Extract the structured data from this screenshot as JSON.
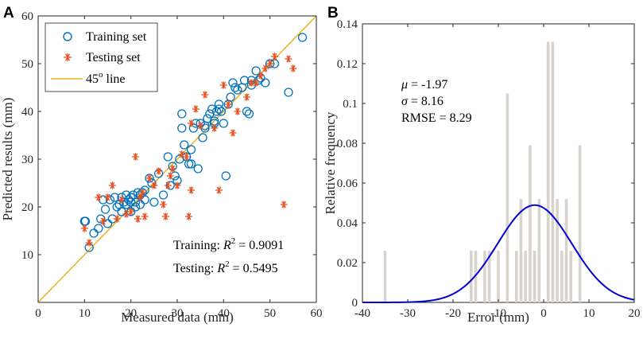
{
  "chart_data": [
    {
      "panel": "A",
      "type": "scatter",
      "xlabel": "Measured data (mm)",
      "ylabel": "Predicted results (mm)",
      "xlim": [
        0,
        60
      ],
      "ylim": [
        0,
        60
      ],
      "xticks": [
        0,
        10,
        20,
        30,
        40,
        50,
        60
      ],
      "yticks": [
        10,
        20,
        30,
        40,
        50,
        60
      ],
      "legend": {
        "placement": "top-left",
        "entries": [
          {
            "label": "Training set",
            "marker": "circle",
            "color": "#0072BD"
          },
          {
            "label": "Testing set",
            "marker": "asterisk",
            "color": "#E8501F"
          },
          {
            "label": "45",
            "superscript": "o",
            "suffix": " line",
            "marker": "line",
            "color": "#EDB120"
          }
        ]
      },
      "reference_line": {
        "name": "45o line",
        "from": [
          0,
          0
        ],
        "to": [
          60,
          60
        ],
        "color": "#EDB120"
      },
      "annotations": [
        {
          "prefix": "Training: ",
          "var": "R",
          "sup": "2",
          "value": " = 0.9091"
        },
        {
          "prefix": "Testing: ",
          "var": "R",
          "sup": "2",
          "value": " = 0.5495"
        }
      ],
      "series": [
        {
          "name": "Training set",
          "x": [
            10,
            10.2,
            11,
            12,
            13,
            13.5,
            14,
            14.5,
            15,
            15.5,
            16,
            16.5,
            17,
            17.5,
            18,
            18,
            18.5,
            19,
            19,
            19.5,
            20,
            20,
            20,
            20.5,
            21,
            21,
            21.5,
            22,
            22,
            22.5,
            23,
            23,
            24,
            24.5,
            25,
            26,
            27,
            28,
            28.5,
            29,
            29.5,
            30,
            30.5,
            31,
            31,
            31.5,
            32,
            32.5,
            33,
            33,
            33.5,
            34,
            34.5,
            35,
            35.5,
            36,
            36,
            36.5,
            37,
            37.5,
            38,
            38,
            38.5,
            39,
            39,
            39.5,
            40,
            40.5,
            41,
            41.5,
            42,
            42.5,
            43,
            44,
            44.5,
            45,
            45.5,
            46,
            46,
            47,
            47.5,
            48,
            49,
            50,
            51,
            54,
            57
          ],
          "y": [
            17,
            17,
            11.5,
            14.5,
            15.5,
            17.5,
            21.5,
            19.5,
            16.5,
            21.5,
            17.5,
            22,
            20,
            20.5,
            22,
            19,
            21,
            22.5,
            20.5,
            21.5,
            21,
            22,
            19,
            22.5,
            21,
            20,
            23,
            22.5,
            20.5,
            23,
            23.5,
            21.5,
            26,
            25,
            21,
            27,
            22.5,
            30.5,
            24.5,
            28.5,
            26.5,
            25.5,
            30,
            39.5,
            36.5,
            33,
            30.5,
            29,
            32,
            29,
            36.5,
            37.5,
            28,
            37.5,
            34.5,
            37,
            36.5,
            38.5,
            39.5,
            40.5,
            37.5,
            38,
            40,
            40.5,
            41.5,
            40,
            37.5,
            26.5,
            41.5,
            43,
            46,
            45,
            44.5,
            45,
            46.5,
            40,
            39.5,
            46.5,
            45.5,
            48.5,
            46.5,
            47,
            46,
            50,
            50,
            44,
            55.5
          ]
        },
        {
          "name": "Testing set",
          "x": [
            10,
            11,
            13,
            14,
            15,
            16,
            17,
            18,
            19,
            20,
            21,
            21.5,
            22,
            22.5,
            23,
            24,
            25,
            26,
            27,
            27.5,
            28,
            28.5,
            29,
            30,
            31,
            32,
            32.5,
            33,
            33,
            34,
            35,
            36,
            38,
            39,
            40,
            41,
            42,
            43,
            45,
            46,
            47,
            48,
            49,
            50,
            51,
            53,
            54,
            55
          ],
          "y": [
            15.5,
            12.5,
            22,
            17,
            22,
            24.5,
            17.5,
            21.5,
            18.5,
            19,
            30.5,
            17.5,
            22,
            23,
            18,
            26,
            24.5,
            27.5,
            20.5,
            18,
            24.5,
            26.5,
            28,
            24.5,
            31,
            30.5,
            18,
            37.5,
            23.5,
            40.5,
            37,
            43.5,
            36.5,
            23.5,
            45.5,
            41.5,
            35.5,
            40,
            43,
            46,
            46,
            47.5,
            49,
            50,
            51.5,
            20.5,
            51,
            49
          ]
        }
      ]
    },
    {
      "panel": "B",
      "type": "bar",
      "xlabel": "Error (mm)",
      "ylabel": "Relative frequency",
      "xlim": [
        -40,
        20
      ],
      "ylim": [
        0,
        0.14
      ],
      "xticks": [
        -40,
        -30,
        -20,
        -10,
        0,
        10,
        20
      ],
      "yticks": [
        0,
        0.02,
        0.04,
        0.06,
        0.08,
        0.1,
        0.12,
        0.14
      ],
      "bar_color": "#D8D3CD",
      "curve": {
        "type": "normal_pdf",
        "mu": -1.97,
        "sigma": 8.16,
        "color": "#0000D6"
      },
      "annotations": [
        {
          "var": "μ",
          "value": " = -1.97"
        },
        {
          "var": "σ",
          "value": " = 8.16"
        },
        {
          "var": "RMSE",
          "value": " = 8.29"
        }
      ],
      "bins": [
        {
          "x": -35,
          "value": 0.026
        },
        {
          "x": -16,
          "value": 0.026
        },
        {
          "x": -15,
          "value": 0.026
        },
        {
          "x": -13,
          "value": 0.026
        },
        {
          "x": -12,
          "value": 0.026
        },
        {
          "x": -10,
          "value": 0.026
        },
        {
          "x": -8,
          "value": 0.105
        },
        {
          "x": -6,
          "value": 0.026
        },
        {
          "x": -5,
          "value": 0.052
        },
        {
          "x": -4,
          "value": 0.026
        },
        {
          "x": -3,
          "value": 0.079
        },
        {
          "x": -2,
          "value": 0.026
        },
        {
          "x": -1,
          "value": 0.052
        },
        {
          "x": 1,
          "value": 0.131
        },
        {
          "x": 2,
          "value": 0.131
        },
        {
          "x": 3,
          "value": 0.052
        },
        {
          "x": 4,
          "value": 0.026
        },
        {
          "x": 5,
          "value": 0.052
        },
        {
          "x": 6,
          "value": 0.026
        },
        {
          "x": 8,
          "value": 0.079
        }
      ]
    }
  ],
  "panels": {
    "a_label": "A",
    "b_label": "B"
  }
}
